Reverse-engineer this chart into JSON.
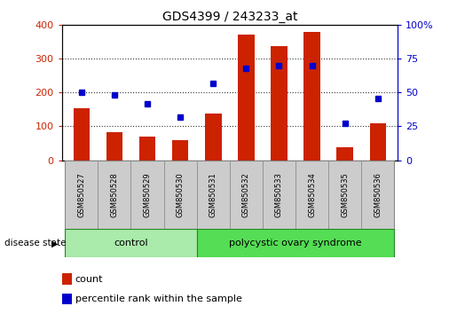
{
  "title": "GDS4399 / 243233_at",
  "samples": [
    "GSM850527",
    "GSM850528",
    "GSM850529",
    "GSM850530",
    "GSM850531",
    "GSM850532",
    "GSM850533",
    "GSM850534",
    "GSM850535",
    "GSM850536"
  ],
  "counts": [
    155,
    83,
    70,
    58,
    138,
    372,
    338,
    380,
    37,
    110
  ],
  "percentile_ranks": [
    50,
    48,
    42,
    32,
    57,
    68,
    70,
    70,
    27,
    46
  ],
  "ylim_left": [
    0,
    400
  ],
  "ylim_right": [
    0,
    100
  ],
  "yticks_left": [
    0,
    100,
    200,
    300,
    400
  ],
  "yticks_right": [
    0,
    25,
    50,
    75,
    100
  ],
  "bar_color": "#CC2200",
  "scatter_color": "#0000CC",
  "bar_width": 0.5,
  "control_samples": 4,
  "control_label": "control",
  "disease_label": "polycystic ovary syndrome",
  "disease_state_label": "disease state",
  "control_color": "#AAEAAA",
  "disease_color": "#55DD55",
  "group_bg_color": "#CCCCCC",
  "legend_count_label": "count",
  "legend_percentile_label": "percentile rank within the sample",
  "grid_color": "#000000",
  "left_tick_color": "#CC2200",
  "right_tick_color": "#0000CC",
  "figure_width": 5.15,
  "figure_height": 3.54,
  "dpi": 100
}
